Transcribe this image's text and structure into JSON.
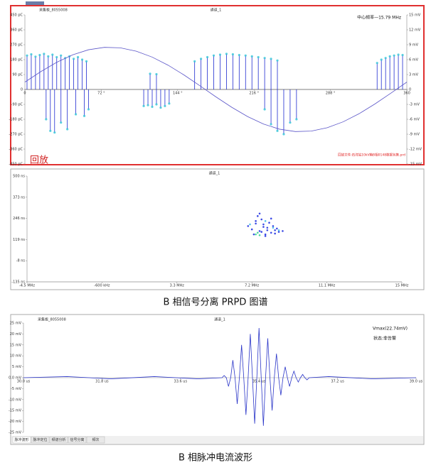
{
  "captions": [
    "B 相信号分离 PRPD 图谱",
    "B 相脉冲电流波形"
  ],
  "chart_data": [
    {
      "type": "stem",
      "title": "通道_1",
      "board": "采集板_8055008",
      "center_frequency": "中心频率—15.79 MHz",
      "mode": "回放",
      "file": "回放文件:石湾站10kV箱B相0148数据包集.prd",
      "xlim": [
        0,
        360
      ],
      "xticks": [
        0,
        {
          "value": 72,
          "label": "72 °"
        },
        {
          "value": 144,
          "label": "144 °"
        },
        {
          "value": 216,
          "label": "216 °"
        },
        {
          "value": 288,
          "label": "288 °"
        },
        360
      ],
      "ylim": [
        -450,
        450
      ],
      "yticks": [
        {
          "value": 450,
          "label": "450 pC"
        },
        {
          "value": 360,
          "label": "360 pC"
        },
        {
          "value": 270,
          "label": "270 pC"
        },
        {
          "value": 180,
          "label": "180 pC"
        },
        {
          "value": 90,
          "label": "90 pC"
        },
        0,
        {
          "value": -90,
          "label": "-90 pC"
        },
        {
          "value": -180,
          "label": "-180 pC"
        },
        {
          "value": -270,
          "label": "-270 pC"
        },
        {
          "value": -360,
          "label": "-360 pC"
        },
        {
          "value": -450,
          "label": "-450 pC"
        }
      ],
      "y2lim": [
        -15,
        15
      ],
      "y2ticks": [
        {
          "value": 15,
          "label": "15 mV"
        },
        {
          "value": 12,
          "label": "12 mV"
        },
        {
          "value": 9,
          "label": "9 mV"
        },
        {
          "value": 6,
          "label": "6 mV"
        },
        {
          "value": 3,
          "label": "3 mV"
        },
        0,
        {
          "value": -3,
          "label": "-3 mV"
        },
        {
          "value": -6,
          "label": "-6 mV"
        },
        {
          "value": -9,
          "label": "-9 mV"
        },
        {
          "value": -12,
          "label": "-12 mV"
        },
        {
          "value": -15,
          "label": "-15 mV"
        }
      ],
      "grid": false,
      "series": [
        {
          "type": "stem",
          "color": "#1f2bd0",
          "dot_color": "#36c8d8",
          "x": [
            2,
            6,
            10,
            14,
            18,
            22,
            26,
            30,
            34,
            38,
            42,
            46,
            50,
            54,
            58,
            20,
            24,
            28,
            34,
            40,
            48,
            56,
            60,
            112,
            116,
            120,
            124,
            128,
            132,
            136,
            118,
            124,
            160,
            166,
            172,
            178,
            184,
            190,
            196,
            202,
            208,
            214,
            220,
            226,
            232,
            238,
            226,
            232,
            238,
            244,
            250,
            256,
            332,
            336,
            340,
            344,
            348,
            352,
            356
          ],
          "values": [
            205,
            212,
            198,
            208,
            215,
            200,
            210,
            195,
            205,
            190,
            200,
            185,
            195,
            180,
            170,
            -180,
            -250,
            -260,
            -200,
            -240,
            -150,
            -160,
            -120,
            -100,
            -95,
            -105,
            -90,
            -110,
            -100,
            -85,
            95,
            92,
            170,
            185,
            195,
            205,
            210,
            215,
            212,
            208,
            205,
            200,
            195,
            190,
            185,
            175,
            -120,
            -210,
            -250,
            -270,
            -200,
            -180,
            160,
            180,
            190,
            200,
            205,
            210,
            208
          ]
        },
        {
          "type": "line",
          "axis": "y2",
          "color": "#5a55c8",
          "x": [
            0,
            15,
            30,
            45,
            60,
            75,
            90,
            105,
            120,
            135,
            150,
            165,
            180,
            195,
            210,
            225,
            240,
            255,
            270,
            285,
            300,
            315,
            330,
            345,
            360
          ],
          "values": [
            1.48,
            3.59,
            5.46,
            6.96,
            7.99,
            8.47,
            8.37,
            7.7,
            6.51,
            4.88,
            2.91,
            0.74,
            -1.48,
            -3.59,
            -5.46,
            -6.96,
            -7.99,
            -8.47,
            -8.37,
            -7.7,
            -6.51,
            -4.88,
            -2.91,
            -0.74,
            1.48
          ]
        }
      ]
    },
    {
      "type": "scatter",
      "title": "通道_1",
      "xlim": [
        -4.5,
        15
      ],
      "xticks": [
        {
          "value": -4.5,
          "label": "-4.5 MHz"
        },
        {
          "value": -0.6,
          "label": "-600 kHz"
        },
        {
          "value": 3.3,
          "label": "3.3 MHz"
        },
        {
          "value": 7.2,
          "label": "7.2 MHz"
        },
        {
          "value": 11.1,
          "label": "11.1 MHz"
        },
        {
          "value": 15,
          "label": "15 MHz"
        }
      ],
      "ylim": [
        -135,
        500
      ],
      "yticks": [
        {
          "value": 500,
          "label": "500 ns"
        },
        {
          "value": 373,
          "label": "373 ns"
        },
        {
          "value": 246,
          "label": "246 ns"
        },
        {
          "value": 119,
          "label": "119 ns"
        },
        {
          "value": -8,
          "label": "-8 ns"
        },
        {
          "value": -135,
          "label": "-135 ns"
        }
      ],
      "grid": false,
      "series": [
        {
          "color": "#1a2be0",
          "x": [
            7.0,
            7.2,
            7.4,
            7.6,
            7.8,
            8.0,
            8.2,
            8.4,
            8.6,
            8.8,
            7.3,
            7.5,
            7.7,
            7.9,
            8.1,
            8.3,
            8.5,
            7.6,
            7.8,
            8.0,
            8.2,
            7.4,
            7.9,
            8.4,
            7.7
          ],
          "values": [
            200,
            180,
            230,
            170,
            210,
            190,
            160,
            175,
            165,
            170,
            150,
            260,
            240,
            150,
            220,
            200,
            185,
            275,
            195,
            175,
            245,
            215,
            140,
            155,
            165
          ]
        },
        {
          "color": "#2bd08a",
          "x": [
            7.4,
            7.5,
            7.6
          ],
          "values": [
            150,
            160,
            145
          ]
        },
        {
          "color": "#39b8e8",
          "x": [
            7.9,
            8.3,
            7.1,
            8.6
          ],
          "values": [
            230,
            190,
            210,
            175
          ]
        }
      ]
    },
    {
      "type": "line",
      "board": "采集板_8055008",
      "title": "通道_1",
      "vmax": "Vmax(22.74mV)",
      "status": "状态:非告警",
      "tabs": [
        "脉冲波形",
        "脉冲定位",
        "频谱分析",
        "信号分离",
        "频次"
      ],
      "xlim": [
        30,
        39
      ],
      "xticks": [
        {
          "value": 30,
          "label": "30.0 us"
        },
        {
          "value": 31.8,
          "label": "31.8 us"
        },
        {
          "value": 33.6,
          "label": "33.6 us"
        },
        {
          "value": 35.4,
          "label": "35.4 us"
        },
        {
          "value": 37.2,
          "label": "37.2 us"
        },
        {
          "value": 39,
          "label": "39.0 us"
        }
      ],
      "ylim": [
        -25,
        25
      ],
      "yticks": [
        {
          "value": 25,
          "label": "25 mV"
        },
        {
          "value": 20,
          "label": "20 mV"
        },
        {
          "value": 15,
          "label": "15 mV"
        },
        {
          "value": 10,
          "label": "10 mV"
        },
        {
          "value": 5,
          "label": "5 mV"
        },
        {
          "value": 0,
          "label": "0.0 mV"
        },
        {
          "value": -5,
          "label": "-5 mV"
        },
        {
          "value": -10,
          "label": "-10 mV"
        },
        {
          "value": -15,
          "label": "-15 mV"
        },
        {
          "value": -20,
          "label": "-20 mV"
        },
        {
          "value": -25,
          "label": "-25 mV"
        }
      ],
      "grid": false,
      "series": [
        {
          "color": "#2a35c8",
          "x": [
            30.0,
            31.0,
            32.0,
            33.0,
            34.0,
            34.55,
            34.6,
            34.65,
            34.7,
            34.75,
            34.8,
            34.85,
            34.9,
            34.95,
            35.0,
            35.05,
            35.1,
            35.15,
            35.2,
            35.25,
            35.3,
            35.35,
            35.4,
            35.45,
            35.5,
            35.55,
            35.6,
            35.65,
            35.7,
            35.75,
            35.8,
            35.85,
            35.9,
            35.95,
            36.0,
            36.05,
            36.1,
            36.15,
            36.2,
            36.25,
            36.3,
            36.35,
            36.4,
            36.45,
            36.5,
            36.55,
            37.0,
            38.0,
            39.0
          ],
          "values": [
            0,
            0.5,
            -0.5,
            0.5,
            -0.5,
            0,
            1,
            0,
            -4,
            0,
            8,
            0,
            -12,
            0,
            15,
            0,
            -17,
            0,
            20,
            0,
            -21,
            0,
            22.74,
            0,
            -22,
            0,
            18,
            0,
            -15,
            0,
            11,
            0,
            -8,
            0,
            5,
            0,
            -4,
            0,
            3,
            0,
            -2,
            0,
            1.5,
            0,
            -1,
            0,
            0.5,
            -0.5,
            0
          ]
        }
      ]
    }
  ]
}
